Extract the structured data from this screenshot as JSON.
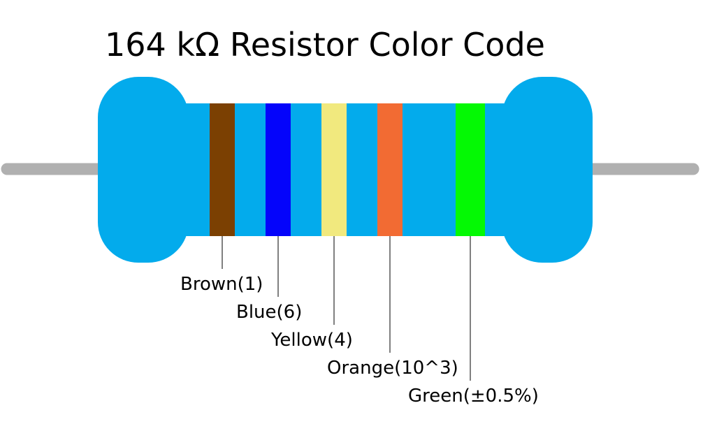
{
  "title": "164 kΩ Resistor Color Code",
  "colors": {
    "body": "#03abec",
    "lead": "#b0b0b0"
  },
  "bands": [
    {
      "name": "Brown",
      "value": "1",
      "label": "Brown(1)",
      "color": "#7b4002"
    },
    {
      "name": "Blue",
      "value": "6",
      "label": "Blue(6)",
      "color": "#0404fb"
    },
    {
      "name": "Yellow",
      "value": "4",
      "label": "Yellow(4)",
      "color": "#f1e97e"
    },
    {
      "name": "Orange",
      "value": "10^3",
      "label": "Orange(10^3)",
      "color": "#f26b33"
    },
    {
      "name": "Green",
      "value": "±0.5%",
      "label": "Green(±0.5%)",
      "color": "#04f904"
    }
  ]
}
